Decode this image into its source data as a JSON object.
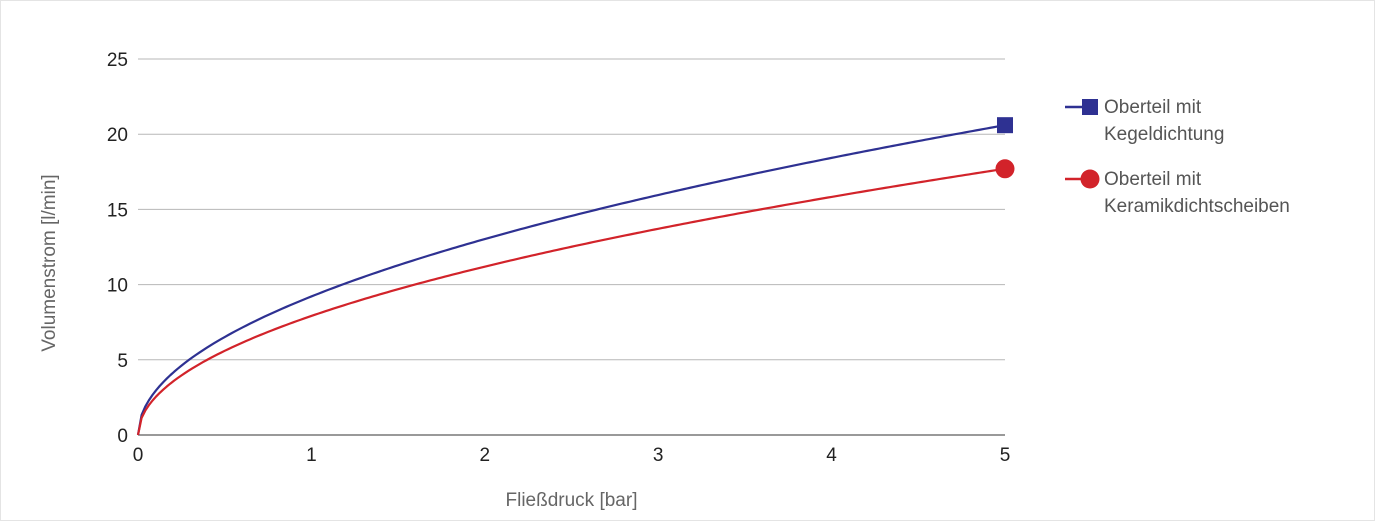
{
  "chart_data": {
    "type": "line",
    "title": "",
    "xlabel": "Fließdruck [bar]",
    "ylabel": "Volumenstrom [l/min]",
    "xlim": [
      0,
      5
    ],
    "ylim": [
      0,
      25
    ],
    "x_ticks": [
      "0",
      "1",
      "2",
      "3",
      "4",
      "5"
    ],
    "y_ticks": [
      "0",
      "5",
      "10",
      "15",
      "20",
      "25"
    ],
    "grid": "horizontal",
    "legend_position": "right",
    "series": [
      {
        "name_lines": [
          "Oberteil mit",
          "Kegeldichtung"
        ],
        "color": "#2e3192",
        "marker": "square",
        "curve": "square-root",
        "x": [
          0,
          0.25,
          0.5,
          0.75,
          1,
          1.5,
          2,
          2.5,
          3,
          3.5,
          4,
          4.5,
          5
        ],
        "y": [
          0,
          4.6,
          6.5,
          8.0,
          9.2,
          11.3,
          13.0,
          14.6,
          16.0,
          17.2,
          18.4,
          19.5,
          20.6
        ]
      },
      {
        "name_lines": [
          "Oberteil mit",
          "Keramikdichtscheiben"
        ],
        "color": "#d2232a",
        "marker": "circle",
        "curve": "square-root",
        "x": [
          0,
          0.25,
          0.5,
          0.75,
          1,
          1.5,
          2,
          2.5,
          3,
          3.5,
          4,
          4.5,
          5
        ],
        "y": [
          0,
          3.95,
          5.6,
          6.85,
          7.9,
          9.7,
          11.2,
          12.5,
          13.7,
          14.8,
          15.8,
          16.8,
          17.7
        ]
      }
    ]
  }
}
